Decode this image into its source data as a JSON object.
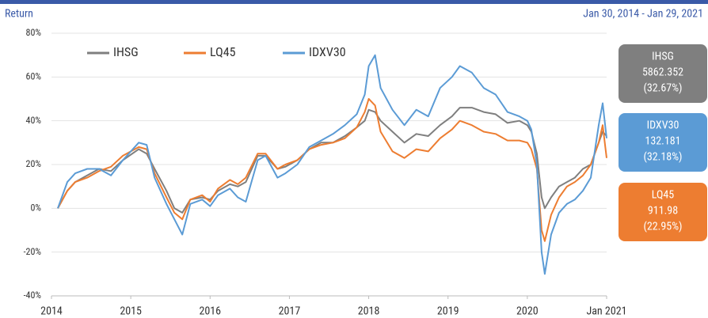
{
  "chart_data": {
    "type": "line",
    "title": "Return",
    "subtitle": "Jan 30, 2014 - Jan 29, 2021",
    "x": [
      2014.08,
      2014.2,
      2014.3,
      2014.45,
      2014.6,
      2014.75,
      2014.9,
      2015.1,
      2015.2,
      2015.3,
      2015.45,
      2015.55,
      2015.65,
      2015.75,
      2015.9,
      2016.0,
      2016.1,
      2016.25,
      2016.35,
      2016.45,
      2016.6,
      2016.7,
      2016.85,
      2016.95,
      2017.1,
      2017.25,
      2017.4,
      2017.55,
      2017.7,
      2017.85,
      2017.95,
      2018.0,
      2018.08,
      2018.15,
      2018.3,
      2018.45,
      2018.6,
      2018.75,
      2018.9,
      2019.05,
      2019.15,
      2019.3,
      2019.45,
      2019.6,
      2019.75,
      2019.9,
      2020.0,
      2020.05,
      2020.12,
      2020.18,
      2020.22,
      2020.3,
      2020.4,
      2020.5,
      2020.6,
      2020.7,
      2020.8,
      2020.9,
      2020.95,
      2021.0
    ],
    "series": [
      {
        "name": "IHSG",
        "color": "#7f7f7f",
        "values": [
          0,
          8,
          12,
          15,
          18,
          17,
          22,
          27,
          25,
          18,
          8,
          0,
          -2,
          4,
          5,
          4,
          8,
          11,
          10,
          12,
          24,
          24,
          18,
          19,
          22,
          27,
          30,
          30,
          33,
          37,
          40,
          45,
          44,
          40,
          35,
          30,
          34,
          33,
          38,
          42,
          46,
          46,
          44,
          43,
          39,
          40,
          38,
          35,
          25,
          5,
          0,
          5,
          10,
          12,
          14,
          18,
          20,
          30,
          35,
          33
        ]
      },
      {
        "name": "LQ45",
        "color": "#ed7d31",
        "values": [
          0,
          8,
          12,
          14,
          17,
          19,
          24,
          28,
          27,
          16,
          5,
          -2,
          -5,
          4,
          6,
          3,
          9,
          13,
          11,
          14,
          25,
          25,
          18,
          20,
          22,
          27,
          29,
          30,
          32,
          37,
          44,
          50,
          47,
          35,
          26,
          23,
          27,
          26,
          32,
          36,
          40,
          38,
          35,
          34,
          31,
          31,
          30,
          27,
          18,
          -10,
          -15,
          -3,
          5,
          10,
          12,
          15,
          20,
          30,
          38,
          23
        ]
      },
      {
        "name": "IDXV30",
        "color": "#5b9bd5",
        "values": [
          0,
          12,
          16,
          18,
          18,
          15,
          22,
          30,
          29,
          14,
          2,
          -5,
          -12,
          2,
          4,
          1,
          6,
          9,
          5,
          3,
          22,
          24,
          14,
          16,
          20,
          28,
          31,
          34,
          38,
          43,
          52,
          65,
          70,
          55,
          45,
          38,
          45,
          42,
          55,
          60,
          65,
          62,
          55,
          52,
          44,
          42,
          40,
          36,
          20,
          -20,
          -30,
          -12,
          -2,
          2,
          4,
          8,
          14,
          38,
          48,
          32
        ]
      }
    ],
    "xlim": [
      2014,
      2021
    ],
    "xticks": [
      2014,
      2015,
      2016,
      2017,
      2018,
      2019,
      2020,
      {
        "value": 2021,
        "label": "Jan 2021"
      }
    ],
    "ylim": [
      -40,
      80
    ],
    "yticks": [
      {
        "value": -40,
        "label": "-40%"
      },
      {
        "value": -20,
        "label": "-20%"
      },
      {
        "value": 0,
        "label": "0%"
      },
      {
        "value": 20,
        "label": "20%"
      },
      {
        "value": 40,
        "label": "40%"
      },
      {
        "value": 60,
        "label": "60%"
      },
      {
        "value": 80,
        "label": "80%"
      }
    ],
    "grid": true,
    "legend": "top-left",
    "panels": [
      {
        "name": "IHSG",
        "value": "5862.352",
        "change": "(32.67%)",
        "color": "#7f7f7f"
      },
      {
        "name": "IDXV30",
        "value": "132.181",
        "change": "(32.18%)",
        "color": "#5b9bd5"
      },
      {
        "name": "LQ45",
        "value": "911.98",
        "change": "(22.95%)",
        "color": "#ed7d31"
      }
    ]
  }
}
